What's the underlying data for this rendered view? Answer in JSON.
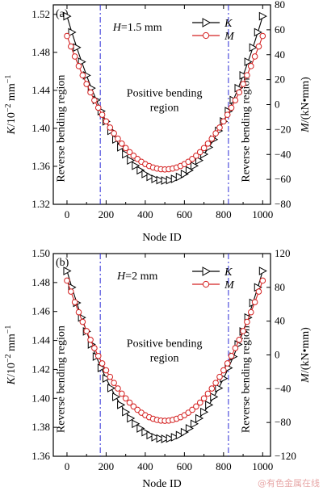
{
  "chart_data": [
    {
      "type": "line",
      "panel_label": "(a)",
      "parameter": {
        "italic": "H",
        "text": "=1.5 mm"
      },
      "region_labels": {
        "left": "Reverse bending region",
        "center_line1": "Positive bending",
        "center_line2": "region",
        "right": "Reverse bending region"
      },
      "region_boundaries_x": [
        170,
        825
      ],
      "xlabel": "Node ID",
      "xlim": [
        -70,
        1040
      ],
      "xticks": [
        0,
        200,
        400,
        600,
        800,
        1000
      ],
      "ylabel_left": {
        "italic": "K",
        "text": "/10",
        "sup": "−2",
        "suffix": " mm",
        "sup2": "−1"
      },
      "ylim_left": [
        1.32,
        1.53
      ],
      "yticks_left": [
        "1.32",
        "1.36",
        "1.40",
        "1.44",
        "1.48",
        "1.52"
      ],
      "ylabel_right": {
        "italic": "M",
        "text": "/(kN•mm)"
      },
      "ylim_right": [
        -80,
        80
      ],
      "yticks_right": [
        "−80",
        "−60",
        "−40",
        "−20",
        "0",
        "20",
        "40",
        "60",
        "80"
      ],
      "series": [
        {
          "name": "K",
          "axis": "left",
          "marker": "triangle-right",
          "color": "#000000",
          "vertex_x": 500,
          "min": 1.345,
          "x_end": 1000,
          "y_end": 1.518
        },
        {
          "name": "M",
          "axis": "right",
          "marker": "circle",
          "color": "#d42020",
          "vertex_x": 500,
          "min": -52,
          "x_end": 1000,
          "y_end": 55
        }
      ]
    },
    {
      "type": "line",
      "panel_label": "(b)",
      "parameter": {
        "italic": "H",
        "text": "=2 mm"
      },
      "region_labels": {
        "left": "Reverse bending region",
        "center_line1": "Positive bending",
        "center_line2": "region",
        "right": "Reverse bending region"
      },
      "region_boundaries_x": [
        170,
        825
      ],
      "xlabel": "Node ID",
      "xlim": [
        -70,
        1040
      ],
      "xticks": [
        0,
        200,
        400,
        600,
        800,
        1000
      ],
      "ylabel_left": {
        "italic": "K",
        "text": "/10",
        "sup": "−2",
        "suffix": " mm",
        "sup2": "−1"
      },
      "ylim_left": [
        1.36,
        1.5
      ],
      "yticks_left": [
        "1.36",
        "1.38",
        "1.40",
        "1.42",
        "1.44",
        "1.46",
        "1.48",
        "1.50"
      ],
      "ylabel_right": {
        "italic": "M",
        "text": "/(kN•mm)"
      },
      "ylim_right": [
        -120,
        120
      ],
      "yticks_right": [
        "−120",
        "−80",
        "−40",
        "0",
        "40",
        "80",
        "120"
      ],
      "series": [
        {
          "name": "K",
          "axis": "left",
          "marker": "triangle-right",
          "color": "#000000",
          "vertex_x": 500,
          "min": 1.372,
          "x_end": 1000,
          "y_end": 1.488
        },
        {
          "name": "M",
          "axis": "right",
          "marker": "circle",
          "color": "#d42020",
          "vertex_x": 500,
          "min": -78,
          "x_end": 1000,
          "y_end": 88
        }
      ]
    }
  ],
  "watermark": "@有色金属在线"
}
